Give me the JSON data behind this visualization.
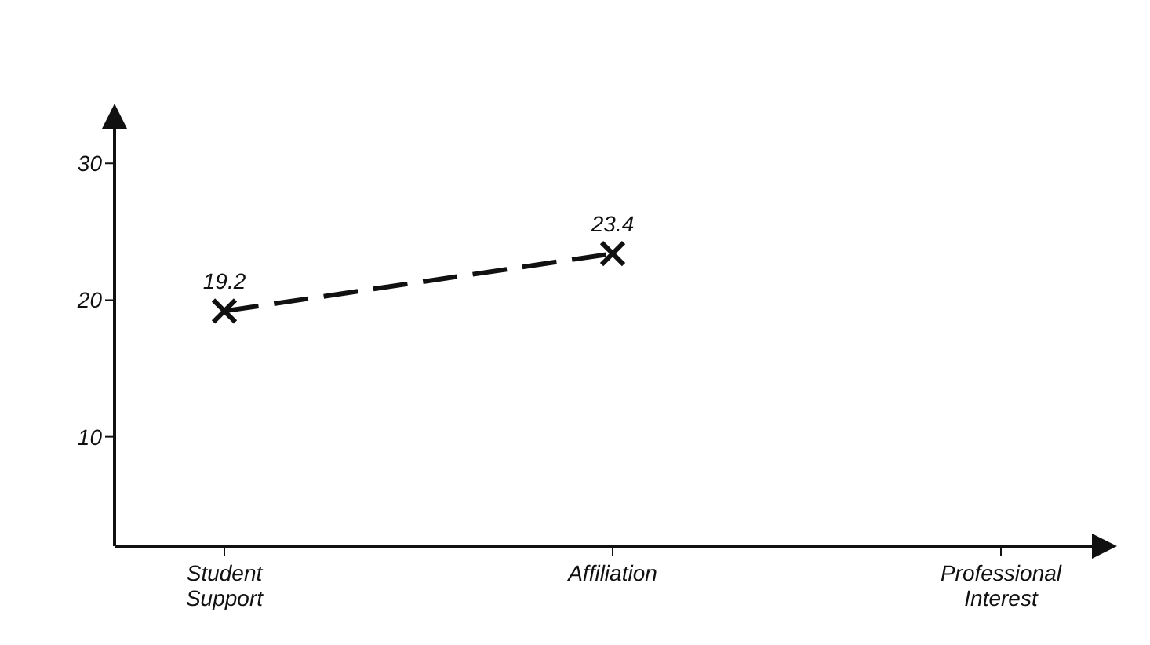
{
  "chart_data": {
    "type": "line",
    "categories": [
      "Student Support",
      "Affiliation",
      "Professional Interest"
    ],
    "series": [
      {
        "color": "#111111",
        "values": [
          19.2,
          23.4,
          null
        ]
      }
    ],
    "data_labels": true,
    "marker": "cross",
    "line_style": "dashed",
    "ylim": [
      2,
      33
    ],
    "yticks": [
      10,
      20,
      30
    ]
  }
}
